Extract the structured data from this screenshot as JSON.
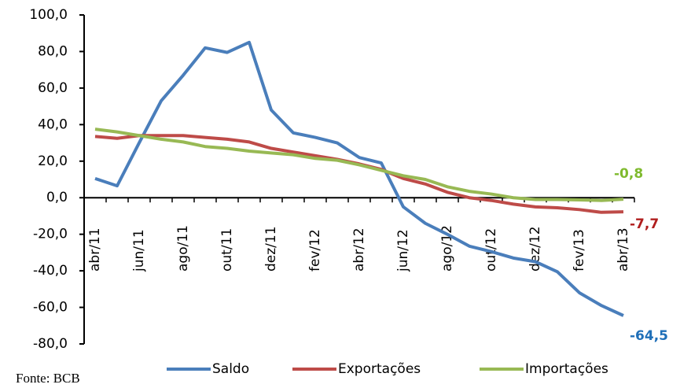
{
  "chart_data": {
    "type": "line",
    "categories": [
      "abr/11",
      null,
      "jun/11",
      null,
      "ago/11",
      null,
      "out/11",
      null,
      "dez/11",
      null,
      "fev/12",
      null,
      "abr/12",
      null,
      "jun/12",
      null,
      "ago/12",
      null,
      "out/12",
      null,
      "dez/12",
      null,
      "fev/13",
      null,
      "abr/13"
    ],
    "series": [
      {
        "name": "Saldo",
        "color": "#4a7ebb",
        "label_color": "#1f6fb8",
        "values": [
          10.5,
          6.5,
          30,
          53,
          67,
          82,
          79.5,
          85,
          48,
          35.5,
          33,
          30,
          22,
          19,
          -5,
          -14,
          -20,
          -26.5,
          -29.5,
          -33,
          -35,
          -40.5,
          -52,
          -59,
          -64.5
        ],
        "value_labels": [
          null,
          null,
          null,
          null,
          null,
          null,
          null,
          null,
          null,
          null,
          null,
          null,
          null,
          null,
          null,
          null,
          null,
          null,
          null,
          null,
          null,
          null,
          null,
          null,
          "-64,5"
        ]
      },
      {
        "name": "Exportações",
        "color": "#be4b48",
        "label_color": "#b01e1e",
        "values": [
          33.5,
          32.5,
          34,
          34,
          34,
          33,
          32,
          30.5,
          27,
          25,
          23,
          21,
          18.5,
          15.5,
          10.5,
          7.5,
          3,
          0,
          -1.5,
          -3.5,
          -5,
          -5.5,
          -6.5,
          -8,
          -7.7
        ],
        "value_labels": [
          null,
          null,
          null,
          null,
          null,
          null,
          null,
          null,
          null,
          null,
          null,
          null,
          null,
          null,
          null,
          null,
          null,
          null,
          null,
          null,
          null,
          null,
          null,
          null,
          "-7,7"
        ]
      },
      {
        "name": "Importações",
        "color": "#98b954",
        "label_color": "#7fba2e",
        "values": [
          37.5,
          36,
          34,
          32,
          30.5,
          28,
          27,
          25.5,
          24.5,
          23.5,
          21.5,
          20.5,
          18,
          15,
          12,
          10,
          6,
          3.5,
          2,
          0,
          -1,
          -1,
          -1.2,
          -1.5,
          -0.8
        ],
        "value_labels": [
          null,
          null,
          null,
          null,
          null,
          null,
          null,
          null,
          null,
          null,
          null,
          null,
          null,
          null,
          null,
          null,
          null,
          null,
          null,
          null,
          null,
          null,
          null,
          null,
          "-0,8"
        ]
      }
    ],
    "ylim": [
      -80,
      100
    ],
    "yticks": [
      {
        "value": -80,
        "label": "-80,0"
      },
      {
        "value": -60,
        "label": "-60,0"
      },
      {
        "value": -40,
        "label": "-40,0"
      },
      {
        "value": -20,
        "label": "-20,0"
      },
      {
        "value": 0,
        "label": "0,0"
      },
      {
        "value": 20,
        "label": "20,0"
      },
      {
        "value": 40,
        "label": "40,0"
      },
      {
        "value": 60,
        "label": "60,0"
      },
      {
        "value": 80,
        "label": "80,0"
      },
      {
        "value": 100,
        "label": "100,0"
      }
    ],
    "source": "Fonte: BCB",
    "legend": "bottom"
  }
}
